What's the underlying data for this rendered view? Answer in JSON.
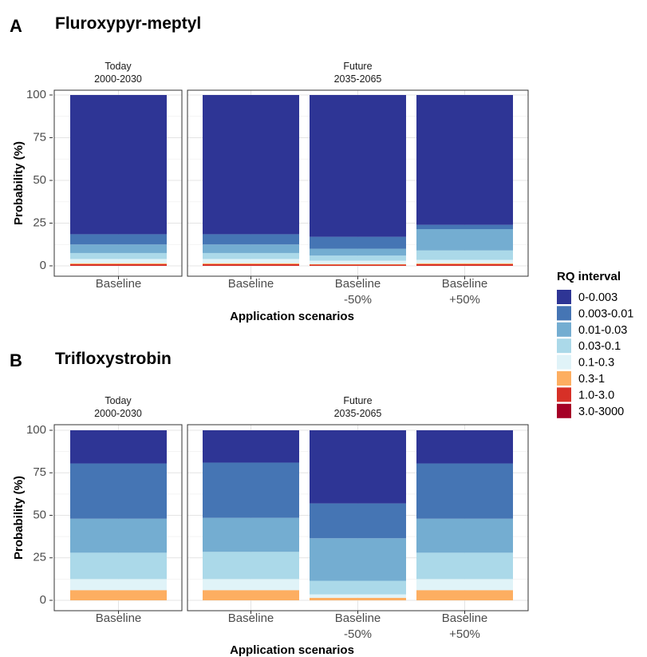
{
  "colors": {
    "0-0.003": "#2e3595",
    "0.003-0.01": "#4575b4",
    "0.01-0.03": "#74add1",
    "0.03-0.1": "#abd9e9",
    "0.1-0.3": "#e0f3f8",
    "0.3-1": "#fdae61",
    "1.0-3.0": "#d73027",
    "3.0-3000": "#a50026"
  },
  "legend": {
    "title": "RQ interval",
    "items": [
      "0-0.003",
      "0.003-0.01",
      "0.01-0.03",
      "0.03-0.1",
      "0.1-0.3",
      "0.3-1",
      "1.0-3.0",
      "3.0-3000"
    ]
  },
  "chart_data": [
    {
      "type": "bar",
      "stacked": true,
      "panel_letter": "A",
      "title": "Fluroxypyr-meptyl",
      "xlabel": "Application scenarios",
      "ylabel": "Probability (%)",
      "ylim": [
        0,
        100
      ],
      "yticks": [
        0,
        25,
        50,
        75,
        100
      ],
      "grid": true,
      "facets": [
        {
          "strip": [
            "Today",
            "2000-2030"
          ],
          "bars": [
            {
              "label": [
                "Baseline"
              ],
              "values": {
                "0-0.003": 81.5,
                "0.003-0.01": 6.0,
                "0.01-0.03": 5.0,
                "0.03-0.1": 3.5,
                "0.1-0.3": 2.5,
                "0.3-1": 0.5,
                "1.0-3.0": 1.0,
                "3.0-3000": 0
              }
            }
          ]
        },
        {
          "strip": [
            "Future",
            "2035-2065"
          ],
          "bars": [
            {
              "label": [
                "Baseline"
              ],
              "values": {
                "0-0.003": 81.5,
                "0.003-0.01": 6.0,
                "0.01-0.03": 5.0,
                "0.03-0.1": 3.5,
                "0.1-0.3": 2.5,
                "0.3-1": 0.5,
                "1.0-3.0": 1.0,
                "3.0-3000": 0
              }
            },
            {
              "label": [
                "Baseline",
                "-50%"
              ],
              "values": {
                "0-0.003": 83.0,
                "0.003-0.01": 7.0,
                "0.01-0.03": 4.0,
                "0.03-0.1": 3.0,
                "0.1-0.3": 2.0,
                "0.3-1": 0.3,
                "1.0-3.0": 0.7,
                "3.0-3000": 0
              }
            },
            {
              "label": [
                "Baseline",
                "+50%"
              ],
              "values": {
                "0-0.003": 76.0,
                "0.003-0.01": 2.5,
                "0.01-0.03": 12.5,
                "0.03-0.1": 5.5,
                "0.1-0.3": 2.0,
                "0.3-1": 0.5,
                "1.0-3.0": 1.0,
                "3.0-3000": 0
              }
            }
          ]
        }
      ]
    },
    {
      "type": "bar",
      "stacked": true,
      "panel_letter": "B",
      "title": "Trifloxystrobin",
      "xlabel": "Application scenarios",
      "ylabel": "Probability (%)",
      "ylim": [
        0,
        100
      ],
      "yticks": [
        0,
        25,
        50,
        75,
        100
      ],
      "grid": true,
      "facets": [
        {
          "strip": [
            "Today",
            "2000-2030"
          ],
          "bars": [
            {
              "label": [
                "Baseline"
              ],
              "values": {
                "0-0.003": 19.5,
                "0.003-0.01": 32.5,
                "0.01-0.03": 20.0,
                "0.03-0.1": 15.5,
                "0.1-0.3": 6.5,
                "0.3-1": 6.0,
                "1.0-3.0": 0,
                "3.0-3000": 0
              }
            }
          ]
        },
        {
          "strip": [
            "Future",
            "2035-2065"
          ],
          "bars": [
            {
              "label": [
                "Baseline"
              ],
              "values": {
                "0-0.003": 19.0,
                "0.003-0.01": 32.5,
                "0.01-0.03": 20.0,
                "0.03-0.1": 16.0,
                "0.1-0.3": 6.5,
                "0.3-1": 6.0,
                "1.0-3.0": 0,
                "3.0-3000": 0
              }
            },
            {
              "label": [
                "Baseline",
                "-50%"
              ],
              "values": {
                "0-0.003": 43.0,
                "0.003-0.01": 20.5,
                "0.01-0.03": 25.0,
                "0.03-0.1": 8.0,
                "0.1-0.3": 2.0,
                "0.3-1": 1.5,
                "1.0-3.0": 0,
                "3.0-3000": 0
              }
            },
            {
              "label": [
                "Baseline",
                "+50%"
              ],
              "values": {
                "0-0.003": 19.5,
                "0.003-0.01": 32.5,
                "0.01-0.03": 20.0,
                "0.03-0.1": 15.5,
                "0.1-0.3": 6.5,
                "0.3-1": 6.0,
                "1.0-3.0": 0,
                "3.0-3000": 0
              }
            }
          ]
        }
      ]
    }
  ]
}
